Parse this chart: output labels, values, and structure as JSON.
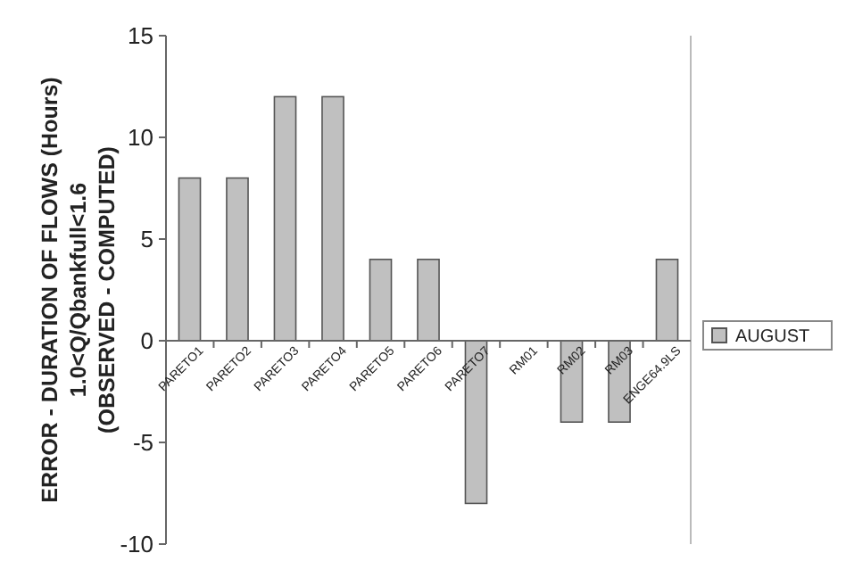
{
  "chart_data": {
    "type": "bar",
    "ylabel": "ERROR - DURATION OF FLOWS (Hours)\n1.0<Q/Qbankfull<1.6\n(OBSERVED - COMPUTED)",
    "categories": [
      "PARETO1",
      "PARETO2",
      "PARETO3",
      "PARETO4",
      "PARETO5",
      "PARETO6",
      "PARETO7",
      "RM01",
      "RM02",
      "RM03",
      "ENGE64.9LS"
    ],
    "series": [
      {
        "name": "AUGUST",
        "color": "#c0c0c0",
        "values": [
          8,
          8,
          12,
          12,
          4,
          4,
          -8,
          0,
          -4,
          -4,
          4
        ]
      }
    ],
    "ylim": [
      -10,
      15
    ],
    "yticks": [
      -10,
      -5,
      0,
      5,
      10,
      15
    ],
    "legend": "right",
    "grid": false
  }
}
